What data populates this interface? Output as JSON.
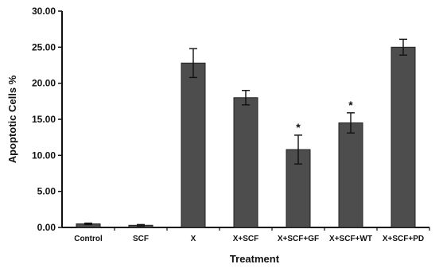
{
  "chart_data": {
    "type": "bar",
    "title": "",
    "xlabel": "Treatment",
    "ylabel": "Apoptotic Cells %",
    "categories": [
      "Control",
      "SCF",
      "X",
      "X+SCF",
      "X+SCF+GF",
      "X+SCF+WT",
      "X+SCF+PD"
    ],
    "values": [
      0.5,
      0.3,
      22.8,
      18.0,
      10.8,
      14.5,
      25.0
    ],
    "errors": [
      0.1,
      0.1,
      2.0,
      1.0,
      2.0,
      1.4,
      1.1
    ],
    "significance": [
      "",
      "",
      "",
      "",
      "*",
      "*",
      ""
    ],
    "ylim": [
      0,
      30
    ],
    "yticks": [
      "0.00",
      "5.00",
      "10.00",
      "15.00",
      "20.00",
      "25.00",
      "30.00"
    ],
    "ytick_values": [
      0,
      5,
      10,
      15,
      20,
      25,
      30
    ],
    "grid": false,
    "legend": "none",
    "bar_color": "#4d4d4d",
    "axis_color": "#111111"
  }
}
